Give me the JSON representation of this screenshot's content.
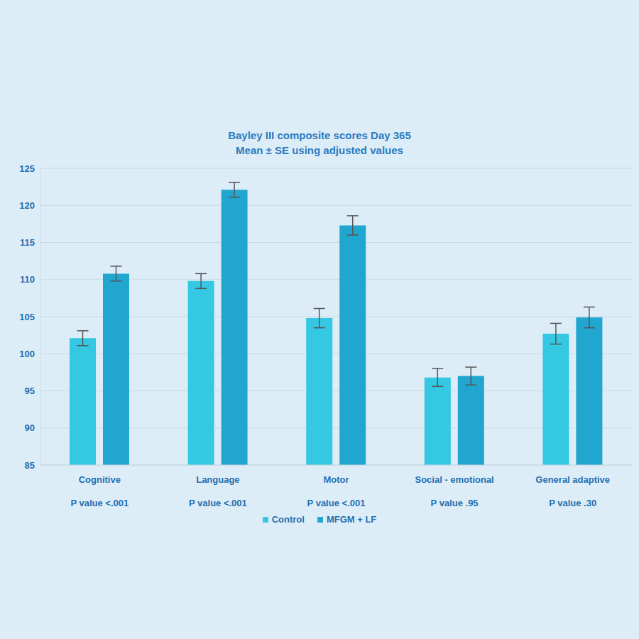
{
  "chart_data": {
    "type": "bar",
    "title": "Bayley III composite scores Day 365",
    "subtitle": "Mean ± SE using adjusted values",
    "categories": [
      "Cognitive",
      "Language",
      "Motor",
      "Social - emotional",
      "General adaptive"
    ],
    "p_values": [
      "P value <.001",
      "P value <.001",
      "P value <.001",
      "P value .95",
      "P value .30"
    ],
    "series": [
      {
        "name": "Control",
        "color": "#35c8e2",
        "values": [
          102.1,
          109.8,
          104.8,
          96.8,
          102.7
        ],
        "errors": [
          1.0,
          1.0,
          1.3,
          1.2,
          1.4
        ]
      },
      {
        "name": "MFGM + LF",
        "color": "#21a6d0",
        "values": [
          110.8,
          122.1,
          117.3,
          97.0,
          104.9
        ],
        "errors": [
          1.0,
          1.0,
          1.3,
          1.2,
          1.4
        ]
      }
    ],
    "ylim": [
      85,
      125
    ],
    "yticks": [
      85,
      90,
      95,
      100,
      105,
      110,
      115,
      120,
      125
    ],
    "grid": true,
    "legend": "bottom"
  }
}
